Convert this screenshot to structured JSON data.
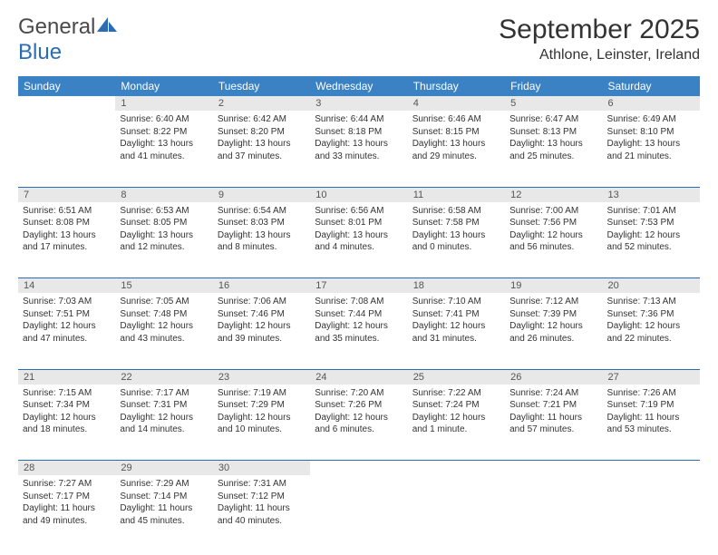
{
  "logo": {
    "word1": "General",
    "word2": "Blue"
  },
  "title": "September 2025",
  "location": "Athlone, Leinster, Ireland",
  "weekdays": [
    "Sunday",
    "Monday",
    "Tuesday",
    "Wednesday",
    "Thursday",
    "Friday",
    "Saturday"
  ],
  "colors": {
    "header_bg": "#3b82c4",
    "header_fg": "#ffffff",
    "rule": "#2a6db5",
    "daynum_bg": "#e8e8e8",
    "text": "#333333"
  },
  "fonts": {
    "title_size": 30,
    "location_size": 16,
    "dayheader_size": 12,
    "cell_size": 10
  },
  "weeks": [
    [
      null,
      {
        "n": "1",
        "sr": "Sunrise: 6:40 AM",
        "ss": "Sunset: 8:22 PM",
        "d1": "Daylight: 13 hours",
        "d2": "and 41 minutes."
      },
      {
        "n": "2",
        "sr": "Sunrise: 6:42 AM",
        "ss": "Sunset: 8:20 PM",
        "d1": "Daylight: 13 hours",
        "d2": "and 37 minutes."
      },
      {
        "n": "3",
        "sr": "Sunrise: 6:44 AM",
        "ss": "Sunset: 8:18 PM",
        "d1": "Daylight: 13 hours",
        "d2": "and 33 minutes."
      },
      {
        "n": "4",
        "sr": "Sunrise: 6:46 AM",
        "ss": "Sunset: 8:15 PM",
        "d1": "Daylight: 13 hours",
        "d2": "and 29 minutes."
      },
      {
        "n": "5",
        "sr": "Sunrise: 6:47 AM",
        "ss": "Sunset: 8:13 PM",
        "d1": "Daylight: 13 hours",
        "d2": "and 25 minutes."
      },
      {
        "n": "6",
        "sr": "Sunrise: 6:49 AM",
        "ss": "Sunset: 8:10 PM",
        "d1": "Daylight: 13 hours",
        "d2": "and 21 minutes."
      }
    ],
    [
      {
        "n": "7",
        "sr": "Sunrise: 6:51 AM",
        "ss": "Sunset: 8:08 PM",
        "d1": "Daylight: 13 hours",
        "d2": "and 17 minutes."
      },
      {
        "n": "8",
        "sr": "Sunrise: 6:53 AM",
        "ss": "Sunset: 8:05 PM",
        "d1": "Daylight: 13 hours",
        "d2": "and 12 minutes."
      },
      {
        "n": "9",
        "sr": "Sunrise: 6:54 AM",
        "ss": "Sunset: 8:03 PM",
        "d1": "Daylight: 13 hours",
        "d2": "and 8 minutes."
      },
      {
        "n": "10",
        "sr": "Sunrise: 6:56 AM",
        "ss": "Sunset: 8:01 PM",
        "d1": "Daylight: 13 hours",
        "d2": "and 4 minutes."
      },
      {
        "n": "11",
        "sr": "Sunrise: 6:58 AM",
        "ss": "Sunset: 7:58 PM",
        "d1": "Daylight: 13 hours",
        "d2": "and 0 minutes."
      },
      {
        "n": "12",
        "sr": "Sunrise: 7:00 AM",
        "ss": "Sunset: 7:56 PM",
        "d1": "Daylight: 12 hours",
        "d2": "and 56 minutes."
      },
      {
        "n": "13",
        "sr": "Sunrise: 7:01 AM",
        "ss": "Sunset: 7:53 PM",
        "d1": "Daylight: 12 hours",
        "d2": "and 52 minutes."
      }
    ],
    [
      {
        "n": "14",
        "sr": "Sunrise: 7:03 AM",
        "ss": "Sunset: 7:51 PM",
        "d1": "Daylight: 12 hours",
        "d2": "and 47 minutes."
      },
      {
        "n": "15",
        "sr": "Sunrise: 7:05 AM",
        "ss": "Sunset: 7:48 PM",
        "d1": "Daylight: 12 hours",
        "d2": "and 43 minutes."
      },
      {
        "n": "16",
        "sr": "Sunrise: 7:06 AM",
        "ss": "Sunset: 7:46 PM",
        "d1": "Daylight: 12 hours",
        "d2": "and 39 minutes."
      },
      {
        "n": "17",
        "sr": "Sunrise: 7:08 AM",
        "ss": "Sunset: 7:44 PM",
        "d1": "Daylight: 12 hours",
        "d2": "and 35 minutes."
      },
      {
        "n": "18",
        "sr": "Sunrise: 7:10 AM",
        "ss": "Sunset: 7:41 PM",
        "d1": "Daylight: 12 hours",
        "d2": "and 31 minutes."
      },
      {
        "n": "19",
        "sr": "Sunrise: 7:12 AM",
        "ss": "Sunset: 7:39 PM",
        "d1": "Daylight: 12 hours",
        "d2": "and 26 minutes."
      },
      {
        "n": "20",
        "sr": "Sunrise: 7:13 AM",
        "ss": "Sunset: 7:36 PM",
        "d1": "Daylight: 12 hours",
        "d2": "and 22 minutes."
      }
    ],
    [
      {
        "n": "21",
        "sr": "Sunrise: 7:15 AM",
        "ss": "Sunset: 7:34 PM",
        "d1": "Daylight: 12 hours",
        "d2": "and 18 minutes."
      },
      {
        "n": "22",
        "sr": "Sunrise: 7:17 AM",
        "ss": "Sunset: 7:31 PM",
        "d1": "Daylight: 12 hours",
        "d2": "and 14 minutes."
      },
      {
        "n": "23",
        "sr": "Sunrise: 7:19 AM",
        "ss": "Sunset: 7:29 PM",
        "d1": "Daylight: 12 hours",
        "d2": "and 10 minutes."
      },
      {
        "n": "24",
        "sr": "Sunrise: 7:20 AM",
        "ss": "Sunset: 7:26 PM",
        "d1": "Daylight: 12 hours",
        "d2": "and 6 minutes."
      },
      {
        "n": "25",
        "sr": "Sunrise: 7:22 AM",
        "ss": "Sunset: 7:24 PM",
        "d1": "Daylight: 12 hours",
        "d2": "and 1 minute."
      },
      {
        "n": "26",
        "sr": "Sunrise: 7:24 AM",
        "ss": "Sunset: 7:21 PM",
        "d1": "Daylight: 11 hours",
        "d2": "and 57 minutes."
      },
      {
        "n": "27",
        "sr": "Sunrise: 7:26 AM",
        "ss": "Sunset: 7:19 PM",
        "d1": "Daylight: 11 hours",
        "d2": "and 53 minutes."
      }
    ],
    [
      {
        "n": "28",
        "sr": "Sunrise: 7:27 AM",
        "ss": "Sunset: 7:17 PM",
        "d1": "Daylight: 11 hours",
        "d2": "and 49 minutes."
      },
      {
        "n": "29",
        "sr": "Sunrise: 7:29 AM",
        "ss": "Sunset: 7:14 PM",
        "d1": "Daylight: 11 hours",
        "d2": "and 45 minutes."
      },
      {
        "n": "30",
        "sr": "Sunrise: 7:31 AM",
        "ss": "Sunset: 7:12 PM",
        "d1": "Daylight: 11 hours",
        "d2": "and 40 minutes."
      },
      null,
      null,
      null,
      null
    ]
  ]
}
